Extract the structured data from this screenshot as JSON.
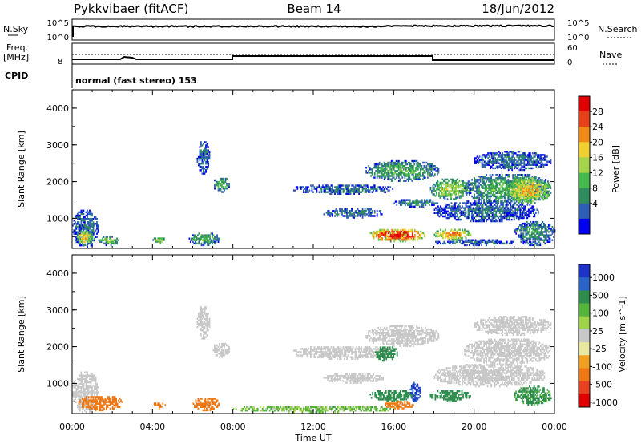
{
  "header": {
    "station": "Pykkvibaer (fitACF)",
    "beam": "Beam 14",
    "date": "18/Jun/2012"
  },
  "top_panel": {
    "left_label": "N.Sky",
    "left_ticks": [
      "10^5",
      "10^0"
    ],
    "right_label": "N.Search",
    "right_ticks": [
      "10^5",
      "10^0"
    ]
  },
  "freq_panel": {
    "left_label_1": "Freq.",
    "left_label_2": "[MHz]",
    "left_ticks": [
      "8"
    ],
    "right_label": "Nave",
    "right_ticks": [
      "60",
      "0"
    ],
    "cpid_label": "CPID",
    "mode_text": "normal (fast stereo) 153"
  },
  "chart_data": [
    {
      "type": "heatmap",
      "name": "power",
      "ylabel": "Slant Range [km]",
      "yticks": [
        "4000",
        "3000",
        "2000",
        "1000"
      ],
      "ylim": [
        180,
        4500
      ],
      "xlim": [
        0,
        24
      ],
      "colorbar_label": "Power [dB]",
      "colorbar_ticks": [
        "28",
        "24",
        "20",
        "16",
        "12",
        "8",
        "4"
      ],
      "colorbar_colors": [
        "#0000f0",
        "#2e5db5",
        "#2f8c5c",
        "#45b94c",
        "#a4d44a",
        "#f0d030",
        "#f08a14",
        "#e8411a",
        "#e00000"
      ],
      "blobs": [
        {
          "t0": 0.0,
          "t1": 1.3,
          "r0": 200,
          "r1": 1200,
          "v": 6
        },
        {
          "t0": 0.2,
          "t1": 1.0,
          "r0": 250,
          "r1": 650,
          "v": 18
        },
        {
          "t0": 1.3,
          "t1": 2.3,
          "r0": 250,
          "r1": 500,
          "v": 12
        },
        {
          "t0": 4.0,
          "t1": 4.6,
          "r0": 300,
          "r1": 480,
          "v": 14
        },
        {
          "t0": 5.8,
          "t1": 7.3,
          "r0": 250,
          "r1": 600,
          "v": 10
        },
        {
          "t0": 6.2,
          "t1": 6.8,
          "r0": 2200,
          "r1": 3100,
          "v": 6
        },
        {
          "t0": 7.0,
          "t1": 7.8,
          "r0": 1700,
          "r1": 2100,
          "v": 10
        },
        {
          "t0": 11.0,
          "t1": 16.0,
          "r0": 1650,
          "r1": 1900,
          "v": 6
        },
        {
          "t0": 12.5,
          "t1": 15.5,
          "r0": 1000,
          "r1": 1250,
          "v": 6
        },
        {
          "t0": 14.6,
          "t1": 18.2,
          "r0": 2000,
          "r1": 2550,
          "v": 10
        },
        {
          "t0": 14.8,
          "t1": 17.5,
          "r0": 350,
          "r1": 700,
          "v": 28
        },
        {
          "t0": 15.5,
          "t1": 16.6,
          "r0": 400,
          "r1": 600,
          "v": 28
        },
        {
          "t0": 16.0,
          "t1": 18.2,
          "r0": 1300,
          "r1": 1500,
          "v": 8
        },
        {
          "t0": 17.8,
          "t1": 19.8,
          "r0": 1500,
          "r1": 2050,
          "v": 14
        },
        {
          "t0": 18.0,
          "t1": 19.8,
          "r0": 400,
          "r1": 700,
          "v": 20
        },
        {
          "t0": 18.0,
          "t1": 23.2,
          "r0": 900,
          "r1": 1450,
          "v": 6
        },
        {
          "t0": 19.5,
          "t1": 23.8,
          "r0": 1400,
          "r1": 2200,
          "v": 10
        },
        {
          "t0": 20.0,
          "t1": 23.8,
          "r0": 2300,
          "r1": 2800,
          "v": 6
        },
        {
          "t0": 21.5,
          "t1": 23.8,
          "r0": 1400,
          "r1": 2100,
          "v": 18
        },
        {
          "t0": 22.0,
          "t1": 24.0,
          "r0": 250,
          "r1": 900,
          "v": 8
        },
        {
          "t0": 18.0,
          "t1": 22.0,
          "r0": 250,
          "r1": 400,
          "v": 6
        }
      ]
    },
    {
      "type": "heatmap",
      "name": "velocity",
      "ylabel": "Slant Range [km]",
      "yticks": [
        "4000",
        "3000",
        "2000",
        "1000"
      ],
      "ylim": [
        180,
        4500
      ],
      "xlim": [
        0,
        24
      ],
      "colorbar_label": "Velocity [m s^-1]",
      "colorbar_ticks": [
        "1000",
        "500",
        "100",
        "25",
        "-25",
        "-100",
        "-500",
        "-1000"
      ],
      "colorbar_colors": [
        "#1c32c8",
        "#2b64c8",
        "#2e8c4e",
        "#55b43c",
        "#9fd44a",
        "#c8c8c8",
        "#e8e8a0",
        "#f0a020",
        "#f07814",
        "#e84020",
        "#e00000"
      ],
      "blobs": [
        {
          "t0": 0.0,
          "t1": 1.3,
          "r0": 200,
          "r1": 1300,
          "v": 0
        },
        {
          "t0": 0.3,
          "t1": 2.5,
          "r0": 250,
          "r1": 650,
          "v": -300
        },
        {
          "t0": 4.0,
          "t1": 4.6,
          "r0": 300,
          "r1": 480,
          "v": -150
        },
        {
          "t0": 6.0,
          "t1": 7.3,
          "r0": 250,
          "r1": 600,
          "v": -300
        },
        {
          "t0": 6.2,
          "t1": 6.8,
          "r0": 2200,
          "r1": 3100,
          "v": 0
        },
        {
          "t0": 7.0,
          "t1": 7.8,
          "r0": 1700,
          "r1": 2100,
          "v": 0
        },
        {
          "t0": 11.0,
          "t1": 16.0,
          "r0": 1650,
          "r1": 2000,
          "v": 0
        },
        {
          "t0": 12.5,
          "t1": 15.5,
          "r0": 1000,
          "r1": 1250,
          "v": 0
        },
        {
          "t0": 14.6,
          "t1": 18.2,
          "r0": 2000,
          "r1": 2550,
          "v": 0
        },
        {
          "t0": 14.8,
          "t1": 17.0,
          "r0": 500,
          "r1": 800,
          "v": 300
        },
        {
          "t0": 15.5,
          "t1": 17.0,
          "r0": 300,
          "r1": 500,
          "v": -300
        },
        {
          "t0": 15.0,
          "t1": 16.2,
          "r0": 1600,
          "r1": 2000,
          "v": 200
        },
        {
          "t0": 16.8,
          "t1": 17.3,
          "r0": 500,
          "r1": 1000,
          "v": 1000
        },
        {
          "t0": 17.8,
          "t1": 19.8,
          "r0": 500,
          "r1": 800,
          "v": 300
        },
        {
          "t0": 18.0,
          "t1": 23.5,
          "r0": 900,
          "r1": 1500,
          "v": 0
        },
        {
          "t0": 19.5,
          "t1": 23.8,
          "r0": 1500,
          "r1": 2200,
          "v": 0
        },
        {
          "t0": 20.0,
          "t1": 23.8,
          "r0": 2300,
          "r1": 2800,
          "v": 0
        },
        {
          "t0": 22.0,
          "t1": 23.8,
          "r0": 400,
          "r1": 900,
          "v": 150
        },
        {
          "t0": 8.0,
          "t1": 16.0,
          "r0": 200,
          "r1": 380,
          "v": 60
        }
      ]
    }
  ],
  "x_axis": {
    "label": "Time UT",
    "ticks": [
      "00:00",
      "04:00",
      "08:00",
      "12:00",
      "16:00",
      "20:00",
      "00:00"
    ]
  }
}
